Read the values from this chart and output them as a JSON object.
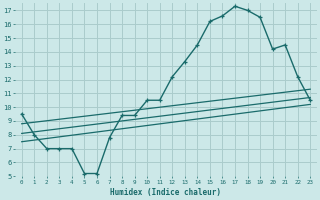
{
  "xlabel": "Humidex (Indice chaleur)",
  "bg_color": "#cce8e8",
  "grid_color": "#aacccc",
  "line_color": "#1a6b6b",
  "xlim": [
    -0.5,
    23.5
  ],
  "ylim": [
    5,
    17.5
  ],
  "xticks": [
    0,
    1,
    2,
    3,
    4,
    5,
    6,
    7,
    8,
    9,
    10,
    11,
    12,
    13,
    14,
    15,
    16,
    17,
    18,
    19,
    20,
    21,
    22,
    23
  ],
  "yticks": [
    5,
    6,
    7,
    8,
    9,
    10,
    11,
    12,
    13,
    14,
    15,
    16,
    17
  ],
  "line1_x": [
    0,
    1,
    2,
    3,
    4,
    5,
    6,
    7,
    8,
    9,
    10,
    11,
    12,
    13,
    14,
    15,
    16,
    17,
    18,
    19,
    20,
    21,
    22,
    23
  ],
  "line1_y": [
    9.5,
    8.0,
    7.0,
    7.0,
    7.0,
    5.2,
    5.2,
    7.8,
    9.4,
    9.4,
    10.5,
    10.5,
    12.2,
    13.3,
    14.5,
    16.2,
    16.6,
    17.3,
    17.0,
    16.5,
    14.2,
    14.5,
    12.2,
    10.5
  ],
  "line2_x": [
    0,
    23
  ],
  "line2_y": [
    7.5,
    10.2
  ],
  "line3_x": [
    0,
    23
  ],
  "line3_y": [
    8.1,
    10.7
  ],
  "line4_x": [
    0,
    23
  ],
  "line4_y": [
    8.8,
    11.3
  ]
}
